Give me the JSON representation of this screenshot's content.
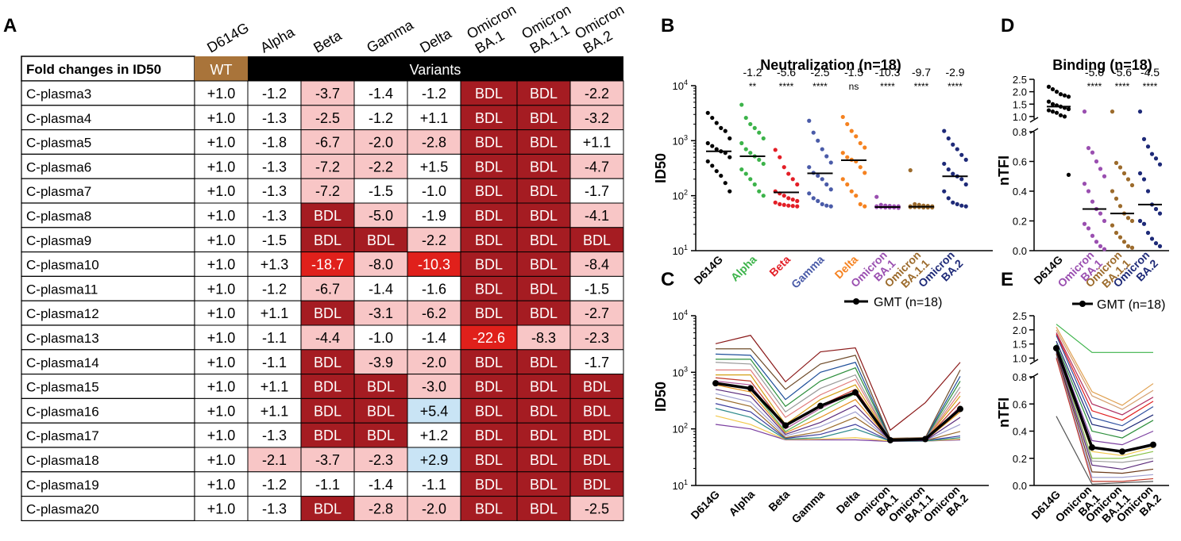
{
  "panel_labels": {
    "a": "A",
    "b": "B",
    "c": "C",
    "d": "D",
    "e": "E"
  },
  "table": {
    "header_label": "Fold changes in ID50",
    "wt_label": "WT",
    "variants_label": "Variants",
    "columns": [
      "D614G",
      "Alpha",
      "Beta",
      "Gamma",
      "Delta",
      "Omicron\nBA.1",
      "Omicron\nBA.1.1",
      "Omicron\nBA.2"
    ],
    "rows": [
      {
        "name": "C-plasma3",
        "cells": [
          "+1.0",
          "-1.2",
          "-3.7",
          "-1.4",
          "-1.2",
          "BDL",
          "BDL",
          "-2.2"
        ]
      },
      {
        "name": "C-plasma4",
        "cells": [
          "+1.0",
          "-1.3",
          "-2.5",
          "-1.2",
          "+1.1",
          "BDL",
          "BDL",
          "-3.2"
        ]
      },
      {
        "name": "C-plasma5",
        "cells": [
          "+1.0",
          "-1.8",
          "-6.7",
          "-2.0",
          "-2.8",
          "BDL",
          "BDL",
          "+1.1"
        ]
      },
      {
        "name": "C-plasma6",
        "cells": [
          "+1.0",
          "-1.3",
          "-7.2",
          "-2.2",
          "+1.5",
          "BDL",
          "BDL",
          "-4.7"
        ]
      },
      {
        "name": "C-plasma7",
        "cells": [
          "+1.0",
          "-1.3",
          "-7.2",
          "-1.5",
          "-1.0",
          "BDL",
          "BDL",
          "-1.7"
        ]
      },
      {
        "name": "C-plasma8",
        "cells": [
          "+1.0",
          "-1.3",
          "BDL",
          "-5.0",
          "-1.9",
          "BDL",
          "BDL",
          "-4.1"
        ]
      },
      {
        "name": "C-plasma9",
        "cells": [
          "+1.0",
          "-1.5",
          "BDL",
          "BDL",
          "-2.2",
          "BDL",
          "BDL",
          "BDL"
        ]
      },
      {
        "name": "C-plasma10",
        "cells": [
          "+1.0",
          "+1.3",
          "-18.7",
          "-8.0",
          "-10.3",
          "BDL",
          "BDL",
          "-8.4"
        ]
      },
      {
        "name": "C-plasma11",
        "cells": [
          "+1.0",
          "-1.2",
          "-6.7",
          "-1.4",
          "-1.6",
          "BDL",
          "BDL",
          "-1.5"
        ]
      },
      {
        "name": "C-plasma12",
        "cells": [
          "+1.0",
          "+1.1",
          "BDL",
          "-3.1",
          "-6.2",
          "BDL",
          "BDL",
          "-2.7"
        ]
      },
      {
        "name": "C-plasma13",
        "cells": [
          "+1.0",
          "-1.1",
          "-4.4",
          "-1.0",
          "-1.4",
          "-22.6",
          "-8.3",
          "-2.3"
        ]
      },
      {
        "name": "C-plasma14",
        "cells": [
          "+1.0",
          "-1.1",
          "BDL",
          "-3.9",
          "-2.0",
          "BDL",
          "BDL",
          "-1.7"
        ]
      },
      {
        "name": "C-plasma15",
        "cells": [
          "+1.0",
          "+1.1",
          "BDL",
          "BDL",
          "-3.0",
          "BDL",
          "BDL",
          "BDL"
        ]
      },
      {
        "name": "C-plasma16",
        "cells": [
          "+1.0",
          "+1.1",
          "BDL",
          "BDL",
          "+5.4",
          "BDL",
          "BDL",
          "BDL"
        ]
      },
      {
        "name": "C-plasma17",
        "cells": [
          "+1.0",
          "-1.3",
          "BDL",
          "BDL",
          "+1.2",
          "BDL",
          "BDL",
          "BDL"
        ]
      },
      {
        "name": "C-plasma18",
        "cells": [
          "+1.0",
          "-2.1",
          "-3.7",
          "-2.3",
          "+2.9",
          "BDL",
          "BDL",
          "BDL"
        ]
      },
      {
        "name": "C-plasma19",
        "cells": [
          "+1.0",
          "-1.2",
          "-1.1",
          "-1.4",
          "-1.1",
          "BDL",
          "BDL",
          "BDL"
        ]
      },
      {
        "name": "C-plasma20",
        "cells": [
          "+1.0",
          "-1.3",
          "BDL",
          "-2.8",
          "-2.0",
          "BDL",
          "BDL",
          "-2.5"
        ]
      }
    ]
  },
  "colors": {
    "bdl": "#A51C22",
    "pink": "#F8C6C6",
    "blue": "#C9E4F5",
    "strong_red": "#E0201B",
    "wt_header": "#A9743A",
    "header_black": "#000000",
    "D614G": "#000000",
    "Alpha": "#3CB34A",
    "Beta": "#E31E26",
    "Gamma": "#4A5BA8",
    "Delta": "#F58220",
    "Omicron BA.1": "#9A4FB0",
    "Omicron BA.1.1": "#9C6B2C",
    "Omicron BA.2": "#1E2A78"
  },
  "chart_data": [
    {
      "panel": "B",
      "type": "scatter",
      "title": "Neutralization (n=18)",
      "ylabel": "ID50",
      "yscale": "log",
      "ylim": [
        10,
        10000
      ],
      "yticks": [
        "10^1",
        "10^2",
        "10^3",
        "10^4"
      ],
      "categories": [
        "D614G",
        "Alpha",
        "Beta",
        "Gamma",
        "Delta",
        "Omicron\nBA.1",
        "Omicron\nBA.1.1",
        "Omicron\nBA.2"
      ],
      "fold_labels": [
        "",
        "-1.2",
        "-5.6",
        "-2.5",
        "-1.5",
        "-10.3",
        "-9.7",
        "-2.9"
      ],
      "significance": [
        "",
        "**",
        "****",
        "****",
        "ns",
        "****",
        "****",
        "****"
      ],
      "medians": [
        640,
        520,
        115,
        255,
        440,
        62,
        63,
        225
      ],
      "points": [
        [
          3200,
          2600,
          2100,
          1700,
          1500,
          1100,
          900,
          800,
          700,
          640,
          600,
          500,
          420,
          350,
          280,
          230,
          170,
          120
        ],
        [
          4500,
          2600,
          2000,
          1700,
          1400,
          1100,
          900,
          700,
          600,
          520,
          450,
          380,
          300,
          250,
          200,
          160,
          120,
          100
        ],
        [
          680,
          500,
          330,
          250,
          200,
          160,
          120,
          110,
          100,
          90,
          85,
          80,
          75,
          70,
          68,
          66,
          65,
          64
        ],
        [
          2300,
          1400,
          1000,
          700,
          520,
          400,
          330,
          260,
          230,
          200,
          160,
          130,
          110,
          90,
          80,
          70,
          66,
          64
        ],
        [
          2700,
          2000,
          1500,
          1200,
          900,
          750,
          600,
          500,
          450,
          420,
          330,
          260,
          200,
          160,
          120,
          100,
          70,
          64
        ],
        [
          95,
          68,
          66,
          65,
          64,
          64,
          64,
          63,
          63,
          63,
          62,
          62,
          62,
          62,
          61,
          61,
          61,
          60
        ],
        [
          290,
          70,
          68,
          66,
          65,
          64,
          64,
          64,
          63,
          63,
          63,
          62,
          62,
          62,
          62,
          61,
          61,
          61
        ],
        [
          1500,
          1100,
          850,
          700,
          550,
          450,
          380,
          300,
          250,
          225,
          200,
          160,
          120,
          90,
          75,
          70,
          66,
          64
        ]
      ]
    },
    {
      "panel": "C",
      "type": "line",
      "ylabel": "ID50",
      "yscale": "log",
      "ylim": [
        10,
        10000
      ],
      "yticks": [
        "10^1",
        "10^2",
        "10^3",
        "10^4"
      ],
      "categories": [
        "D614G",
        "Alpha",
        "Beta",
        "Gamma",
        "Delta",
        "Omicron\nBA.1",
        "Omicron\nBA.1.1",
        "Omicron\nBA.2"
      ],
      "legend": "GMT (n=18)",
      "gmt": [
        640,
        520,
        115,
        255,
        440,
        63,
        66,
        225
      ]
    },
    {
      "panel": "D",
      "type": "scatter",
      "title": "Binding (n=18)",
      "ylabel": "nTFI",
      "yticks_low": [
        "0.0",
        "0.2",
        "0.4",
        "0.6",
        "0.8"
      ],
      "yticks_high": [
        "1.0",
        "1.5",
        "2.0",
        "2.5"
      ],
      "categories": [
        "D614G",
        "Omicron\nBA.1",
        "Omicron\nBA.1.1",
        "Omicron\nBA.2"
      ],
      "fold_labels": [
        "",
        "-5.0",
        "-5.6",
        "-4.5"
      ],
      "significance": [
        "",
        "****",
        "****",
        "****"
      ],
      "medians": [
        1.4,
        0.28,
        0.25,
        0.31
      ],
      "points": [
        [
          2.2,
          2.1,
          2.0,
          1.9,
          1.85,
          1.8,
          1.6,
          1.5,
          1.45,
          1.4,
          1.35,
          1.3,
          1.25,
          1.2,
          1.15,
          1.05,
          1.0,
          0.51
        ],
        [
          1.2,
          0.69,
          0.66,
          0.6,
          0.55,
          0.5,
          0.45,
          0.4,
          0.33,
          0.28,
          0.25,
          0.2,
          0.18,
          0.15,
          0.1,
          0.06,
          0.03,
          0.01
        ],
        [
          1.2,
          0.59,
          0.56,
          0.52,
          0.48,
          0.44,
          0.4,
          0.35,
          0.3,
          0.25,
          0.22,
          0.2,
          0.17,
          0.12,
          0.09,
          0.06,
          0.03,
          0.02
        ],
        [
          1.2,
          0.75,
          0.7,
          0.65,
          0.62,
          0.58,
          0.52,
          0.48,
          0.4,
          0.31,
          0.28,
          0.25,
          0.2,
          0.18,
          0.12,
          0.08,
          0.05,
          0.03
        ]
      ]
    },
    {
      "panel": "E",
      "type": "line",
      "ylabel": "nTFI",
      "yticks_low": [
        "0.0",
        "0.2",
        "0.4",
        "0.6",
        "0.8"
      ],
      "yticks_high": [
        "1.0",
        "1.5",
        "2.0",
        "2.5"
      ],
      "categories": [
        "D614G",
        "Omicron\nBA.1",
        "Omicron\nBA.1.1",
        "Omicron\nBA.2"
      ],
      "legend": "GMT (n=18)",
      "gmt": [
        1.35,
        0.28,
        0.25,
        0.3
      ]
    }
  ]
}
